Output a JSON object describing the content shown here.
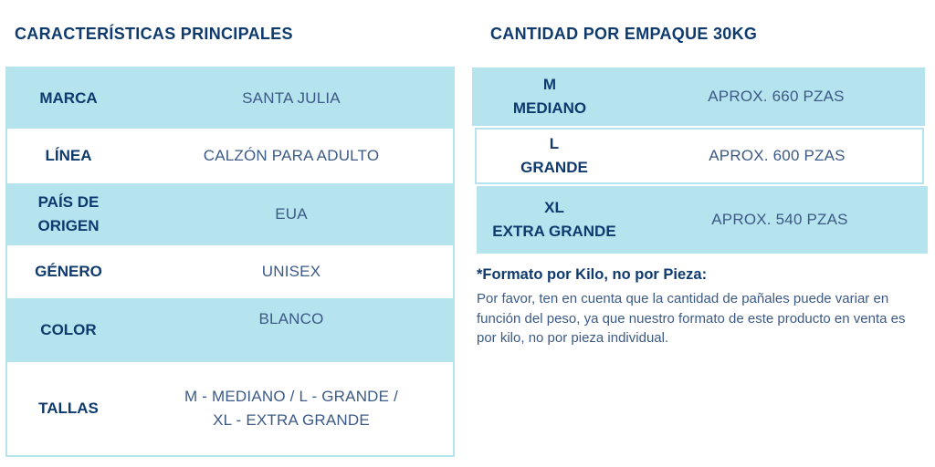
{
  "left": {
    "heading": "CARACTERÍSTICAS PRINCIPALES",
    "rows": [
      {
        "label": "MARCA",
        "value": "SANTA JULIA"
      },
      {
        "label": "LÍNEA",
        "value": "CALZÓN PARA ADULTO"
      },
      {
        "label_line1": "PAÍS DE",
        "label_line2": "ORIGEN",
        "value": "EUA"
      },
      {
        "label": "GÉNERO",
        "value": "UNISEX"
      },
      {
        "label": "COLOR",
        "value": "BLANCO"
      },
      {
        "label": "TALLAS",
        "value_line1": "M - MEDIANO / L - GRANDE /",
        "value_line2": "XL  - EXTRA GRANDE"
      }
    ]
  },
  "right": {
    "heading": "CANTIDAD POR EMPAQUE 30KG",
    "rows": [
      {
        "size_code": "M",
        "size_name": "MEDIANO",
        "quantity": "APROX. 660 PZAS"
      },
      {
        "size_code": "L",
        "size_name": "GRANDE",
        "quantity": "APROX. 600 PZAS"
      },
      {
        "size_code": "XL",
        "size_name": "EXTRA GRANDE",
        "quantity": "APROX. 540 PZAS"
      }
    ],
    "note_title": "*Formato por Kilo, no por Pieza:",
    "note_body": "Por favor, ten en cuenta que la cantidad de pañales puede variar en función del peso, ya que nuestro formato de este producto en venta es por kilo, no por pieza individual."
  },
  "colors": {
    "heading": "#0e3a6e",
    "row_fill": "#b5e3ee",
    "value_text": "#3c5a86"
  }
}
